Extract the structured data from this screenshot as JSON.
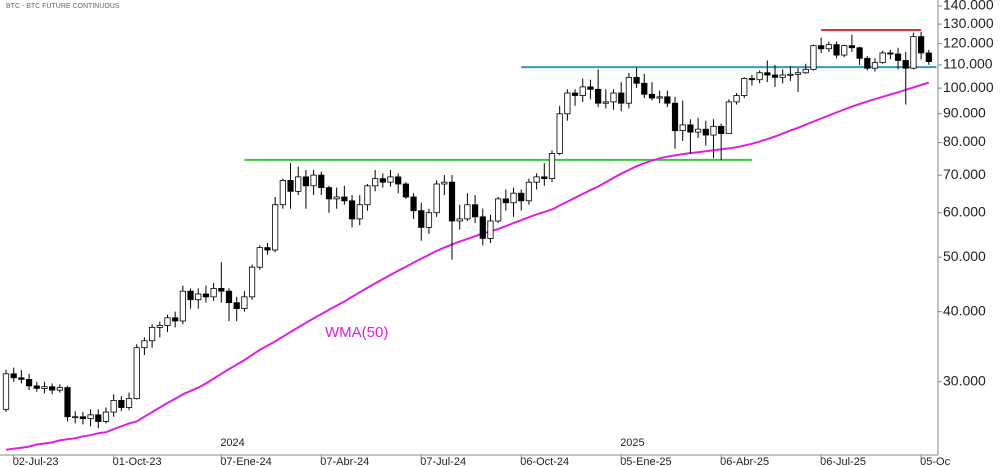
{
  "chart_data": {
    "type": "candlestick",
    "title": "BTC - BTC FUTURE CONTINUOUS",
    "log_scale": true,
    "up_color": "#ffffff",
    "down_color": "#000000",
    "ylim": [
      22500,
      143500
    ],
    "yticks": [
      {
        "value": 30000,
        "label": "30.000"
      },
      {
        "value": 40000,
        "label": "40.000"
      },
      {
        "value": 50000,
        "label": "50.000"
      },
      {
        "value": 60000,
        "label": "60.000"
      },
      {
        "value": 70000,
        "label": "70.000"
      },
      {
        "value": 80000,
        "label": "80.000"
      },
      {
        "value": 90000,
        "label": "90.000"
      },
      {
        "value": 100000,
        "label": "100.000"
      },
      {
        "value": 110000,
        "label": "110.000"
      },
      {
        "value": 120000,
        "label": "120.000"
      },
      {
        "value": 130000,
        "label": "130.000"
      },
      {
        "value": 140000,
        "label": "140.000"
      }
    ],
    "categories": [
      null,
      "02-Jul-23",
      null,
      null,
      null,
      null,
      null,
      null,
      null,
      null,
      null,
      null,
      null,
      null,
      "01-Oct-23",
      null,
      null,
      null,
      null,
      null,
      null,
      null,
      null,
      null,
      null,
      null,
      null,
      null,
      "07-Ene-24",
      null,
      null,
      null,
      null,
      null,
      null,
      null,
      null,
      null,
      null,
      null,
      null,
      "07-Abr-24",
      null,
      null,
      null,
      null,
      null,
      null,
      null,
      null,
      null,
      null,
      null,
      null,
      "07-Jul-24",
      null,
      null,
      null,
      null,
      null,
      null,
      null,
      null,
      null,
      null,
      null,
      null,
      "06-Oct-24",
      null,
      null,
      null,
      null,
      null,
      null,
      null,
      null,
      null,
      null,
      null,
      null,
      "05-Ene-25",
      null,
      null,
      null,
      null,
      null,
      null,
      null,
      null,
      null,
      null,
      null,
      null,
      "06-Abr-25",
      null,
      null,
      null,
      null,
      null,
      null,
      null,
      null,
      null,
      null,
      null,
      null,
      "06-Jul-25",
      null,
      null,
      null,
      null,
      null,
      null,
      null,
      null,
      null,
      null,
      null,
      null,
      "05-Oc",
      null
    ],
    "categories_year": [
      null,
      null,
      null,
      null,
      null,
      null,
      null,
      null,
      null,
      null,
      null,
      null,
      null,
      null,
      null,
      null,
      null,
      null,
      null,
      null,
      null,
      null,
      null,
      null,
      null,
      null,
      null,
      null,
      "2024",
      null,
      null,
      null,
      null,
      null,
      null,
      null,
      null,
      null,
      null,
      null,
      null,
      null,
      null,
      null,
      null,
      null,
      null,
      null,
      null,
      null,
      null,
      null,
      null,
      null,
      null,
      null,
      null,
      null,
      null,
      null,
      null,
      null,
      null,
      null,
      null,
      null,
      null,
      null,
      null,
      null,
      null,
      null,
      null,
      null,
      null,
      null,
      null,
      null,
      null,
      null,
      "2025",
      null,
      null,
      null,
      null,
      null,
      null,
      null,
      null,
      null,
      null,
      null,
      null,
      null,
      null,
      null,
      null,
      null,
      null,
      null,
      null,
      null,
      null,
      null,
      null,
      null,
      null,
      null,
      null,
      null,
      null,
      null,
      null,
      null,
      null,
      null,
      null,
      null,
      null,
      null,
      null
    ],
    "series": [
      {
        "open": [
          26800,
          31000,
          30500,
          30300,
          29500,
          29200,
          29400,
          29000,
          29300,
          26000,
          26000,
          25800,
          26200,
          25500,
          26500,
          27800,
          27000,
          28000,
          34500,
          35500,
          37500,
          37800,
          39000,
          38500,
          43500,
          42000,
          43000,
          42500,
          44000,
          43500,
          41500,
          40500,
          42500,
          48000,
          52000,
          51500,
          62000,
          68500,
          65500,
          69500,
          67000,
          70000,
          66500,
          63500,
          64000,
          63000,
          58500,
          62000,
          67000,
          69000,
          68000,
          69500,
          67500,
          64000,
          60500,
          56500,
          60000,
          67500,
          68000,
          58000,
          58500,
          62000,
          59000,
          54000,
          58000,
          63500,
          62500,
          65000,
          63000,
          68000,
          69500,
          69000,
          76500,
          90000,
          98000,
          97000,
          100500,
          99500,
          94000,
          94500,
          98000,
          94000,
          104500,
          102000,
          97500,
          96000,
          96500,
          94000,
          84000,
          86000,
          83500,
          84500,
          82500,
          85500,
          83000,
          94500,
          97000,
          104000,
          103500,
          106500,
          105500,
          104500,
          105500,
          105800,
          106500,
          108000,
          119000,
          117500,
          119500,
          114500,
          119000,
          118000,
          113000,
          108500,
          111000,
          115500,
          115000,
          112000,
          108500,
          123500,
          115500
        ],
        "high": [
          31500,
          31800,
          31500,
          31000,
          30000,
          30000,
          29800,
          29700,
          29500,
          26600,
          26500,
          26800,
          26800,
          27000,
          28500,
          28300,
          28700,
          35000,
          36000,
          38000,
          38400,
          39500,
          40000,
          44500,
          44000,
          44000,
          44500,
          45000,
          49000,
          44000,
          42500,
          43500,
          48500,
          52500,
          53000,
          64000,
          69000,
          73500,
          72500,
          71500,
          71500,
          71000,
          67000,
          66500,
          67000,
          64500,
          64500,
          67500,
          71500,
          70500,
          71500,
          70500,
          68000,
          65000,
          62500,
          61000,
          68500,
          70000,
          70000,
          62000,
          65000,
          64500,
          61000,
          59500,
          64000,
          66000,
          66500,
          66000,
          69000,
          70500,
          73500,
          77500,
          93000,
          99500,
          99500,
          104000,
          103500,
          108000,
          99500,
          99500,
          102500,
          106500,
          109000,
          106000,
          102500,
          99000,
          99000,
          96500,
          95000,
          88000,
          88500,
          87500,
          88000,
          86500,
          95500,
          98000,
          104500,
          105500,
          107500,
          112000,
          110000,
          108000,
          109500,
          108500,
          110500,
          119500,
          123000,
          121000,
          121000,
          119500,
          124500,
          118500,
          114000,
          113000,
          116500,
          117000,
          118000,
          116000,
          125500,
          126000,
          117000
        ],
        "low": [
          26500,
          30000,
          29800,
          29000,
          28800,
          28600,
          28500,
          28700,
          25500,
          25300,
          25200,
          25000,
          24800,
          25300,
          26000,
          26600,
          26700,
          27900,
          33500,
          34500,
          36000,
          36800,
          37500,
          38000,
          40500,
          40500,
          41500,
          41800,
          41500,
          38500,
          38500,
          40000,
          42000,
          47500,
          50500,
          51000,
          61000,
          61000,
          64500,
          61000,
          64500,
          64500,
          60000,
          61000,
          62000,
          56500,
          57000,
          60500,
          65500,
          66500,
          66800,
          65000,
          63500,
          58500,
          53500,
          55000,
          59000,
          64500,
          49500,
          56000,
          58000,
          57500,
          52500,
          53000,
          57500,
          60500,
          59000,
          60500,
          62000,
          66000,
          67000,
          68000,
          76000,
          87500,
          93000,
          94500,
          95500,
          92500,
          92000,
          91500,
          91000,
          92000,
          100000,
          96000,
          95000,
          94000,
          92500,
          78000,
          80500,
          76500,
          81500,
          79000,
          75000,
          74500,
          83000,
          93500,
          96000,
          101000,
          102000,
          102500,
          100500,
          102000,
          103000,
          98500,
          106000,
          107500,
          115500,
          116000,
          113000,
          113500,
          116000,
          110000,
          107500,
          107000,
          110500,
          112500,
          108000,
          93500,
          108000,
          112500,
          110000
        ],
        "close": [
          31000,
          30500,
          30300,
          29500,
          29200,
          29400,
          29000,
          29300,
          26000,
          26000,
          25800,
          26200,
          25500,
          26500,
          27800,
          27000,
          28000,
          34500,
          35500,
          37500,
          37800,
          39000,
          38500,
          43500,
          42000,
          43000,
          42500,
          44000,
          43500,
          41500,
          40500,
          42500,
          48000,
          52000,
          51500,
          62000,
          68500,
          65500,
          69500,
          67000,
          70000,
          66500,
          63500,
          64000,
          63000,
          58500,
          62000,
          67000,
          69000,
          68000,
          69500,
          67500,
          64000,
          60500,
          56500,
          60000,
          67500,
          68000,
          58000,
          58500,
          62000,
          59000,
          54000,
          58000,
          63500,
          62500,
          65000,
          63000,
          68000,
          69500,
          69000,
          76500,
          90000,
          98000,
          97000,
          100500,
          99500,
          94000,
          94500,
          98000,
          94000,
          104500,
          102000,
          97500,
          96000,
          96500,
          94000,
          84000,
          86000,
          83500,
          84500,
          82500,
          85500,
          83000,
          94500,
          97000,
          104000,
          103500,
          106500,
          105500,
          104500,
          105500,
          105800,
          106500,
          108000,
          119000,
          117500,
          119500,
          114500,
          119000,
          118000,
          113000,
          108500,
          111000,
          115500,
          115000,
          112000,
          108500,
          123500,
          115500,
          111500
        ]
      }
    ],
    "overlays": [
      {
        "name": "WMA(50)",
        "color": "#e020e0",
        "values": [
          22700,
          22800,
          22900,
          23000,
          23200,
          23300,
          23400,
          23600,
          23700,
          23800,
          24000,
          24100,
          24300,
          24400,
          24700,
          25000,
          25300,
          25500,
          26000,
          26500,
          27000,
          27500,
          28000,
          28500,
          28900,
          29300,
          29800,
          30400,
          31000,
          31600,
          32200,
          32800,
          33500,
          34200,
          34800,
          35400,
          36100,
          36800,
          37500,
          38200,
          38900,
          39600,
          40300,
          41000,
          41700,
          42500,
          43300,
          44100,
          44900,
          45700,
          46500,
          47300,
          48100,
          48900,
          49700,
          50500,
          51300,
          52000,
          52700,
          53300,
          53900,
          54500,
          55100,
          55600,
          56100,
          56800,
          57500,
          58200,
          58900,
          59600,
          60200,
          60800,
          61800,
          62800,
          63800,
          64800,
          65800,
          66800,
          68000,
          69200,
          70400,
          71500,
          72600,
          73500,
          74300,
          75000,
          75500,
          75900,
          76300,
          76600,
          76900,
          77200,
          77500,
          77800,
          78100,
          78500,
          79000,
          79600,
          80300,
          81100,
          82000,
          83000,
          84000,
          85000,
          86100,
          87200,
          88300,
          89400,
          90500,
          91600,
          92700,
          93700,
          94700,
          95600,
          96500,
          97400,
          98300,
          99300,
          100300,
          101300,
          102300
        ]
      }
    ],
    "levels": [
      {
        "value": 74500,
        "color": "#33cc33",
        "start": 31,
        "end": 97
      },
      {
        "value": 109000,
        "color": "#3399cc",
        "start": 67,
        "end": 121
      },
      {
        "value": 126900,
        "color": "#e03030",
        "start": 106,
        "end": 119
      }
    ]
  }
}
